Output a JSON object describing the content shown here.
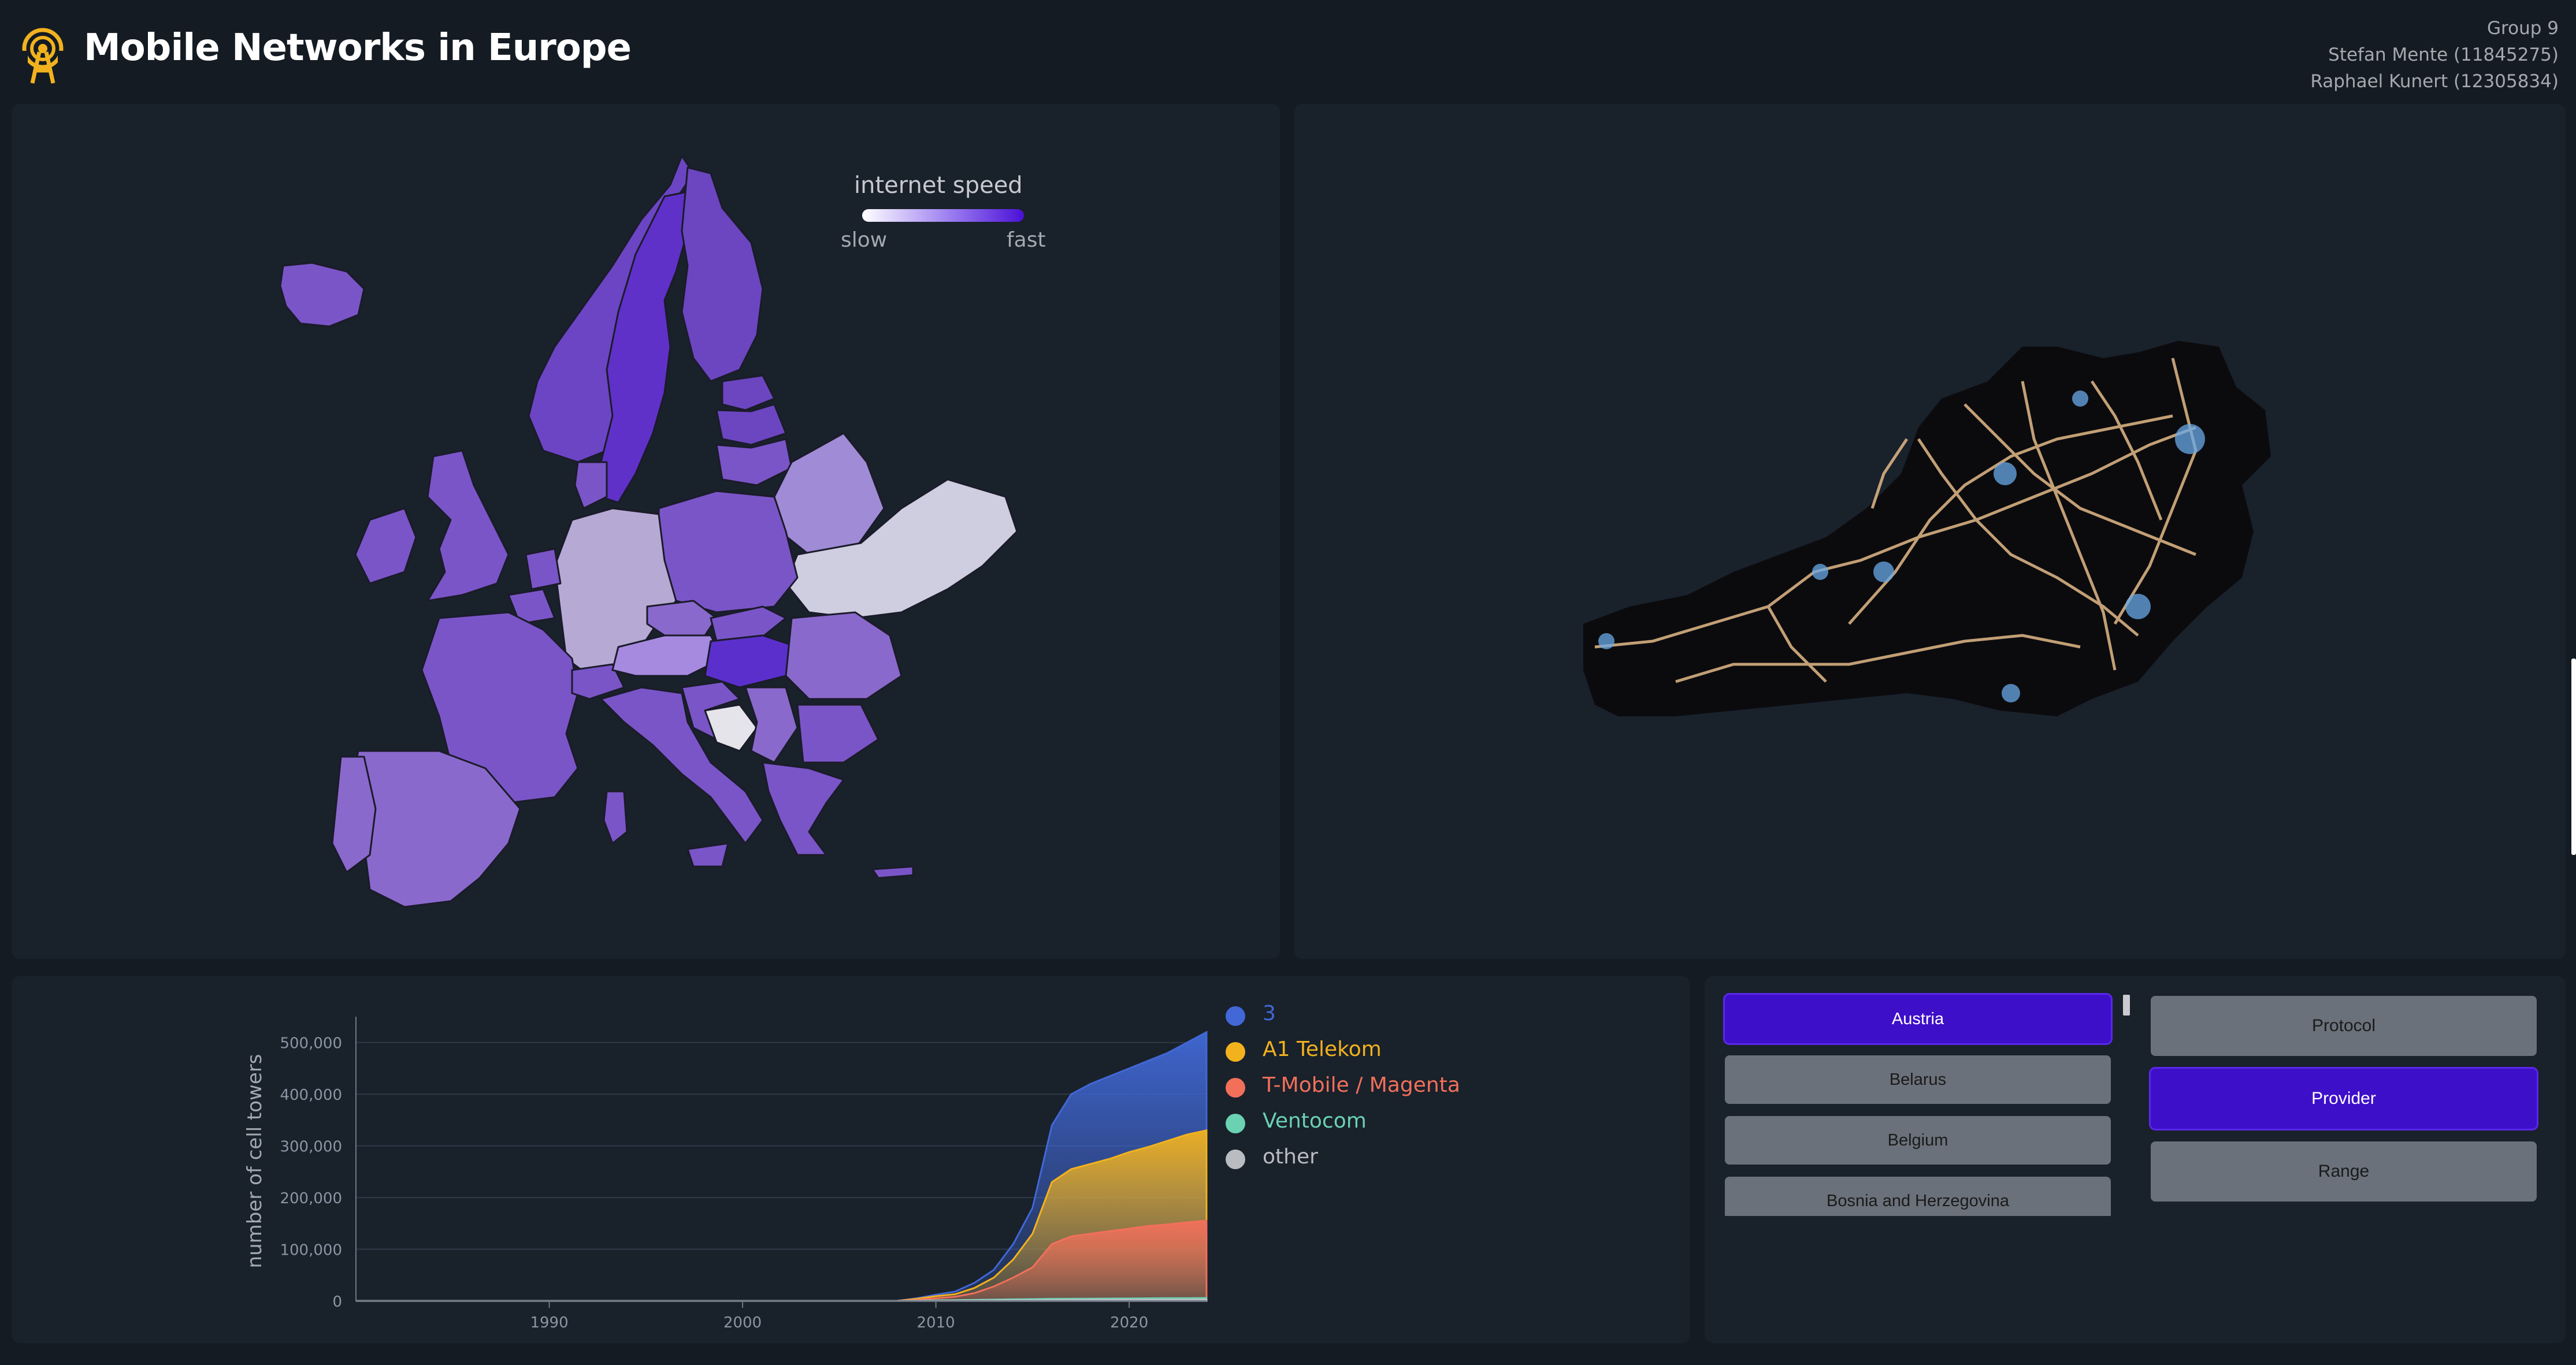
{
  "header": {
    "title": "Mobile Networks in Europe",
    "logo_icon": "antenna-icon",
    "credits": [
      "Group 9",
      "Stefan Mente (11845275)",
      "Raphael Kunert (12305834)"
    ]
  },
  "map_legend": {
    "title": "internet speed",
    "slow": "slow",
    "fast": "fast",
    "gradient": [
      "#ffffff",
      "#4b10d6"
    ]
  },
  "countries": [
    "Austria",
    "Belarus",
    "Belgium",
    "Bosnia and Herzegovina"
  ],
  "selected_country": "Austria",
  "modes": [
    "Protocol",
    "Provider",
    "Range"
  ],
  "selected_mode": "Provider",
  "chart_data": {
    "type": "area",
    "ylabel": "number of cell towers",
    "xlabel": "",
    "xlim": [
      1980,
      2024
    ],
    "ylim": [
      0,
      550000
    ],
    "x_ticks": [
      1990,
      2000,
      2010,
      2020
    ],
    "y_ticks": [
      0,
      100000,
      200000,
      300000,
      400000,
      500000
    ],
    "y_tick_labels": [
      "0",
      "100,000",
      "200,000",
      "300,000",
      "400,000",
      "500,000"
    ],
    "x": [
      1980,
      2008,
      2009,
      2010,
      2011,
      2012,
      2013,
      2014,
      2015,
      2016,
      2017,
      2018,
      2019,
      2020,
      2021,
      2022,
      2023,
      2024
    ],
    "series": [
      {
        "name": "3",
        "color": "#4168d6",
        "values": [
          0,
          0,
          5000,
          12000,
          18000,
          35000,
          60000,
          110000,
          180000,
          340000,
          400000,
          420000,
          435000,
          450000,
          465000,
          480000,
          500000,
          520000
        ]
      },
      {
        "name": "A1 Telekom",
        "color": "#f2b21e",
        "values": [
          0,
          0,
          4000,
          9000,
          13000,
          25000,
          45000,
          80000,
          130000,
          230000,
          255000,
          265000,
          275000,
          288000,
          298000,
          310000,
          322000,
          330000
        ]
      },
      {
        "name": "T-Mobile / Magenta",
        "color": "#f2705a",
        "values": [
          0,
          0,
          2000,
          5000,
          8000,
          15000,
          28000,
          45000,
          65000,
          110000,
          125000,
          130000,
          135000,
          140000,
          145000,
          148000,
          152000,
          155000
        ]
      },
      {
        "name": "Ventocom",
        "color": "#6bd1b3",
        "values": [
          0,
          0,
          500,
          1000,
          1500,
          2000,
          2500,
          3000,
          3500,
          4000,
          4200,
          4400,
          4600,
          4800,
          5000,
          5200,
          5400,
          5600
        ]
      },
      {
        "name": "other",
        "color": "#b9bcc1",
        "values": [
          0,
          0,
          200,
          400,
          600,
          800,
          1000,
          1200,
          1400,
          1600,
          1800,
          2000,
          2100,
          2200,
          2300,
          2400,
          2500,
          2600
        ]
      }
    ]
  }
}
